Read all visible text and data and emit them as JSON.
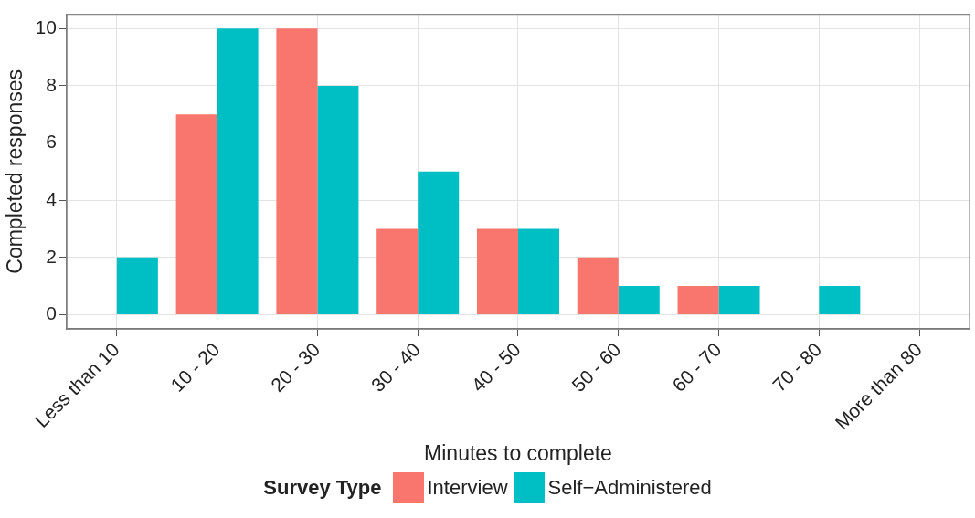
{
  "chart_data": {
    "type": "bar",
    "xlabel": "Minutes to complete",
    "ylabel": "Completed responses",
    "legend_title": "Survey Type",
    "legend": "bottom",
    "grid": true,
    "categories": [
      "Less than 10",
      "10 - 20",
      "20 - 30",
      "30 - 40",
      "40 - 50",
      "50 - 60",
      "60 - 70",
      "70 - 80",
      "More than 80"
    ],
    "series": [
      {
        "name": "Interview",
        "color": "#f8766d",
        "values": [
          0,
          7,
          10,
          3,
          3,
          2,
          1,
          0,
          0
        ]
      },
      {
        "name": "Self−Administered",
        "color": "#00bfc4",
        "values": [
          2,
          10,
          8,
          5,
          3,
          1,
          1,
          1,
          0
        ]
      }
    ],
    "ylim": [
      -0.5,
      10.5
    ],
    "yticks": [
      0,
      2,
      4,
      6,
      8,
      10
    ]
  }
}
